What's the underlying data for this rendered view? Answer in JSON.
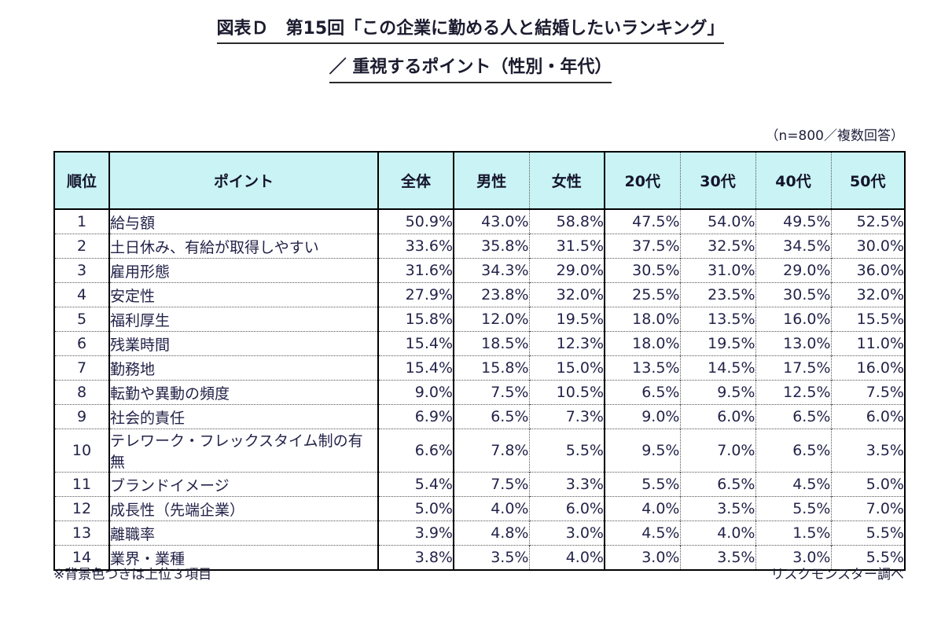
{
  "title": {
    "line1": "図表Ｄ　第15回「この企業に勤める人と結婚したいランキング」",
    "line2": "／ 重視するポイント（性別・年代）"
  },
  "note": "（n=800／複数回答）",
  "footer": {
    "left": "※背景色つきは上位３項目",
    "right": "リスクモンスター調べ"
  },
  "colors": {
    "header_bg": "#c9f3f4",
    "highlight_bg": "#f8c5ef",
    "border": "#000000",
    "text": "#1f1f3c"
  },
  "chart_data": {
    "type": "table",
    "title": "図表Ｄ　第15回「この企業に勤める人と結婚したいランキング」／ 重視するポイント（性別・年代）",
    "sample_note": "n=800／複数回答",
    "highlight_rule": "背景色つきは各列の上位3項目",
    "columns": [
      "順位",
      "ポイント",
      "全体",
      "男性",
      "女性",
      "20代",
      "30代",
      "40代",
      "50代"
    ],
    "rows": [
      {
        "rank": "1",
        "label": "給与額",
        "values": [
          "50.9%",
          "43.0%",
          "58.8%",
          "47.5%",
          "54.0%",
          "49.5%",
          "52.5%"
        ],
        "highlight": [
          true,
          true,
          true,
          true,
          true,
          true,
          true
        ]
      },
      {
        "rank": "2",
        "label": "土日休み、有給が取得しやすい",
        "values": [
          "33.6%",
          "35.8%",
          "31.5%",
          "37.5%",
          "32.5%",
          "34.5%",
          "30.0%"
        ],
        "highlight": [
          true,
          true,
          true,
          true,
          true,
          true,
          false
        ]
      },
      {
        "rank": "3",
        "label": "雇用形態",
        "values": [
          "31.6%",
          "34.3%",
          "29.0%",
          "30.5%",
          "31.0%",
          "29.0%",
          "36.0%"
        ],
        "highlight": [
          true,
          true,
          false,
          true,
          true,
          false,
          true
        ]
      },
      {
        "rank": "4",
        "label": "安定性",
        "values": [
          "27.9%",
          "23.8%",
          "32.0%",
          "25.5%",
          "23.5%",
          "30.5%",
          "32.0%"
        ],
        "highlight": [
          false,
          false,
          true,
          false,
          false,
          true,
          true
        ]
      },
      {
        "rank": "5",
        "label": "福利厚生",
        "values": [
          "15.8%",
          "12.0%",
          "19.5%",
          "18.0%",
          "13.5%",
          "16.0%",
          "15.5%"
        ],
        "highlight": [
          false,
          false,
          false,
          false,
          false,
          false,
          false
        ]
      },
      {
        "rank": "6",
        "label": "残業時間",
        "values": [
          "15.4%",
          "18.5%",
          "12.3%",
          "18.0%",
          "19.5%",
          "13.0%",
          "11.0%"
        ],
        "highlight": [
          false,
          false,
          false,
          false,
          false,
          false,
          false
        ]
      },
      {
        "rank": "7",
        "label": "勤務地",
        "values": [
          "15.4%",
          "15.8%",
          "15.0%",
          "13.5%",
          "14.5%",
          "17.5%",
          "16.0%"
        ],
        "highlight": [
          false,
          false,
          false,
          false,
          false,
          false,
          false
        ]
      },
      {
        "rank": "8",
        "label": "転勤や異動の頻度",
        "values": [
          "9.0%",
          "7.5%",
          "10.5%",
          "6.5%",
          "9.5%",
          "12.5%",
          "7.5%"
        ],
        "highlight": [
          false,
          false,
          false,
          false,
          false,
          false,
          false
        ]
      },
      {
        "rank": "9",
        "label": "社会的責任",
        "values": [
          "6.9%",
          "6.5%",
          "7.3%",
          "9.0%",
          "6.0%",
          "6.5%",
          "6.0%"
        ],
        "highlight": [
          false,
          false,
          false,
          false,
          false,
          false,
          false
        ]
      },
      {
        "rank": "10",
        "label": "テレワーク・フレックスタイム制の有無",
        "values": [
          "6.6%",
          "7.8%",
          "5.5%",
          "9.5%",
          "7.0%",
          "6.5%",
          "3.5%"
        ],
        "highlight": [
          false,
          false,
          false,
          false,
          false,
          false,
          false
        ]
      },
      {
        "rank": "11",
        "label": "ブランドイメージ",
        "values": [
          "5.4%",
          "7.5%",
          "3.3%",
          "5.5%",
          "6.5%",
          "4.5%",
          "5.0%"
        ],
        "highlight": [
          false,
          false,
          false,
          false,
          false,
          false,
          false
        ]
      },
      {
        "rank": "12",
        "label": "成長性（先端企業）",
        "values": [
          "5.0%",
          "4.0%",
          "6.0%",
          "4.0%",
          "3.5%",
          "5.5%",
          "7.0%"
        ],
        "highlight": [
          false,
          false,
          false,
          false,
          false,
          false,
          false
        ]
      },
      {
        "rank": "13",
        "label": "離職率",
        "values": [
          "3.9%",
          "4.8%",
          "3.0%",
          "4.5%",
          "4.0%",
          "1.5%",
          "5.5%"
        ],
        "highlight": [
          false,
          false,
          false,
          false,
          false,
          false,
          false
        ]
      },
      {
        "rank": "14",
        "label": "業界・業種",
        "values": [
          "3.8%",
          "3.5%",
          "4.0%",
          "3.0%",
          "3.5%",
          "3.0%",
          "5.5%"
        ],
        "highlight": [
          false,
          false,
          false,
          false,
          false,
          false,
          false
        ]
      }
    ]
  }
}
